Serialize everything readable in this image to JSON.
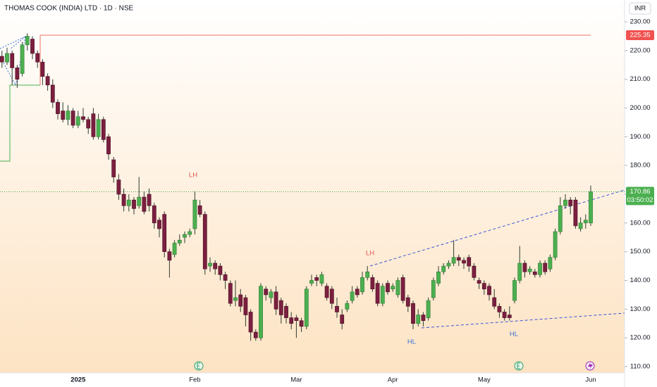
{
  "chart_data": {
    "type": "candlestick",
    "title": "THOMAS COOK (INDIA) LTD · 1D · NSE",
    "currency": "INR",
    "categories": [
      null,
      null,
      null,
      null,
      null,
      null,
      null,
      null,
      null,
      null,
      null,
      null,
      null,
      null,
      null,
      "2025",
      null,
      null,
      null,
      null,
      null,
      null,
      null,
      null,
      null,
      null,
      null,
      null,
      null,
      null,
      null,
      null,
      null,
      null,
      null,
      null,
      null,
      null,
      "Feb",
      null,
      null,
      null,
      null,
      null,
      null,
      null,
      null,
      null,
      null,
      null,
      null,
      null,
      null,
      null,
      null,
      null,
      null,
      null,
      "Mar",
      null,
      null,
      null,
      null,
      null,
      null,
      null,
      null,
      null,
      null,
      null,
      null,
      null,
      null,
      null,
      null,
      null,
      null,
      "Apr",
      null,
      null,
      null,
      null,
      null,
      null,
      null,
      null,
      null,
      null,
      null,
      null,
      null,
      null,
      null,
      null,
      null,
      "May",
      null,
      null,
      null,
      null,
      null,
      null,
      null,
      null,
      null,
      null,
      null,
      null,
      null,
      null,
      null,
      null,
      null,
      null,
      null,
      null,
      "Jun"
    ],
    "open": [
      218,
      216,
      219,
      214,
      212,
      222,
      224,
      219,
      216,
      211,
      208,
      202,
      199,
      196,
      199,
      194,
      197,
      196,
      198,
      190,
      196,
      190,
      182,
      175,
      170,
      166,
      168,
      166,
      169,
      170,
      166,
      161,
      163,
      150,
      149,
      153,
      155,
      156,
      158,
      166,
      163,
      145,
      146,
      145,
      142,
      139,
      133,
      135,
      134,
      129,
      122,
      120,
      137,
      134,
      136,
      133,
      131,
      127,
      127,
      126,
      124,
      139,
      141,
      139,
      138,
      137,
      131,
      128,
      130,
      133,
      137,
      136,
      141,
      141,
      139,
      132,
      139,
      137,
      135,
      141,
      134,
      132,
      125,
      128,
      127,
      134,
      139,
      143,
      145,
      146,
      148,
      147,
      148,
      145,
      140,
      139,
      138,
      134,
      131,
      129,
      128,
      133,
      140,
      146,
      143,
      143,
      142,
      146,
      144,
      148,
      157,
      166,
      168,
      168,
      158,
      160,
      160
    ],
    "high": [
      220,
      221,
      220,
      215,
      223,
      226,
      225,
      220,
      217,
      212,
      210,
      203,
      202,
      201,
      200,
      199,
      200,
      197,
      200,
      198,
      197,
      191,
      183,
      177,
      172,
      170,
      169,
      176,
      171,
      172,
      167,
      162,
      164,
      151,
      154,
      156,
      157,
      158,
      171,
      168,
      164,
      148,
      147,
      146,
      143,
      140,
      140,
      137,
      135,
      130,
      123,
      139,
      138,
      137,
      138,
      134,
      132,
      129,
      128,
      127,
      138,
      142,
      142,
      143,
      139,
      138,
      134,
      130,
      133,
      138,
      138,
      143,
      145,
      142,
      140,
      139,
      140,
      139,
      141,
      142,
      135,
      133,
      130,
      129,
      134,
      141,
      145,
      146,
      147,
      154,
      149,
      148,
      149,
      146,
      141,
      140,
      139,
      137,
      132,
      130,
      131,
      141,
      152,
      147,
      145,
      144,
      147,
      147,
      149,
      158,
      169,
      170,
      169,
      169,
      162,
      163,
      173
    ],
    "low": [
      214,
      215,
      208,
      207,
      211,
      220,
      217,
      214,
      208,
      206,
      200,
      196,
      195,
      194,
      193,
      193,
      195,
      191,
      189,
      189,
      188,
      182,
      174,
      168,
      164,
      164,
      163,
      165,
      163,
      164,
      158,
      155,
      148,
      141,
      148,
      152,
      153,
      155,
      156,
      162,
      142,
      143,
      142,
      140,
      137,
      131,
      131,
      129,
      124,
      119,
      119,
      119,
      133,
      132,
      128,
      125,
      125,
      123,
      120,
      122,
      123,
      138,
      138,
      138,
      133,
      130,
      127,
      123,
      129,
      132,
      134,
      135,
      140,
      136,
      131,
      131,
      135,
      136,
      134,
      132,
      129,
      123,
      124,
      124,
      126,
      133,
      138,
      142,
      144,
      145,
      145,
      144,
      143,
      140,
      137,
      135,
      133,
      130,
      127,
      126,
      126,
      132,
      139,
      141,
      142,
      141,
      141,
      142,
      143,
      147,
      156,
      165,
      163,
      158,
      157,
      158,
      159
    ],
    "close": [
      216,
      219,
      214,
      210,
      222,
      225,
      219,
      216,
      211,
      208,
      202,
      198,
      196,
      199,
      194,
      197,
      196,
      193,
      190,
      196,
      189,
      184,
      176,
      170,
      166,
      168,
      165,
      169,
      164,
      166,
      160,
      158,
      150,
      147,
      153,
      154,
      156,
      157,
      168,
      163,
      144,
      146,
      144,
      142,
      140,
      132,
      134,
      131,
      128,
      122,
      120,
      138,
      135,
      136,
      130,
      128,
      127,
      125,
      126,
      124,
      137,
      140,
      140,
      142,
      134,
      132,
      129,
      125,
      132,
      136,
      135,
      141,
      143,
      137,
      132,
      138,
      136,
      138,
      140,
      133,
      131,
      125,
      128,
      126,
      133,
      140,
      143,
      145,
      146,
      148,
      147,
      146,
      145,
      141,
      139,
      137,
      135,
      131,
      129,
      127,
      127,
      140,
      146,
      143,
      144,
      142,
      146,
      143,
      148,
      157,
      166,
      168,
      166,
      159,
      160,
      161,
      170.86
    ],
    "up_color": "#4caf50",
    "down_color": "#7b1f3f",
    "ylim": [
      107.8,
      237.6
    ],
    "yticks": [
      {
        "value": 110,
        "label": "110.00"
      },
      {
        "value": 120,
        "label": "120.00"
      },
      {
        "value": 130,
        "label": "130.00"
      },
      {
        "value": 140,
        "label": "140.00"
      },
      {
        "value": 150,
        "label": "150.00"
      },
      {
        "value": 160,
        "label": "160.00"
      },
      {
        "value": 170,
        "label": "170.00"
      },
      {
        "value": 180,
        "label": "180.00"
      },
      {
        "value": 190,
        "label": "190.00"
      },
      {
        "value": 200,
        "label": "200.00"
      },
      {
        "value": 210,
        "label": "210.00"
      },
      {
        "value": 220,
        "label": "220.00"
      },
      {
        "value": 230,
        "label": "230.00"
      }
    ],
    "target_line": 225.35,
    "last_price": 170.86,
    "countdown": "03:50:02",
    "annotations": [
      {
        "text": "LH",
        "color": "#e0564f"
      },
      {
        "text": "LH",
        "color": "#e0564f"
      },
      {
        "text": "HL",
        "color": "#3a6fd8"
      },
      {
        "text": "HL",
        "color": "#3a6fd8"
      }
    ]
  }
}
